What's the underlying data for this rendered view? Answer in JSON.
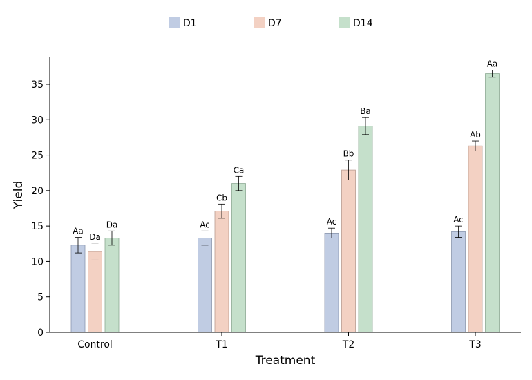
{
  "chart_data": {
    "type": "bar",
    "title": "",
    "xlabel": "Treatment",
    "ylabel": "Yield",
    "categories": [
      "Control",
      "T1",
      "T2",
      "T3"
    ],
    "ylim": [
      0,
      38.8
    ],
    "yticks": [
      0,
      5,
      10,
      15,
      20,
      25,
      30,
      35
    ],
    "legend_position": "top-center",
    "grid": false,
    "series": [
      {
        "name": "D1",
        "color": "#c0cce3",
        "edge_color": "#8a96ad",
        "values": [
          12.3,
          13.3,
          14.0,
          14.2
        ],
        "errors": [
          1.1,
          1.0,
          0.7,
          0.8
        ],
        "labels": [
          "Aa",
          "Ac",
          "Ac",
          "Ac"
        ]
      },
      {
        "name": "D7",
        "color": "#f3d1c3",
        "edge_color": "#b89b8f",
        "values": [
          11.4,
          17.1,
          22.9,
          26.3
        ],
        "errors": [
          1.2,
          1.0,
          1.4,
          0.7
        ],
        "labels": [
          "Da",
          "Cb",
          "Bb",
          "Ab"
        ]
      },
      {
        "name": "D14",
        "color": "#c5e0cb",
        "edge_color": "#8aa891",
        "values": [
          13.3,
          21.0,
          29.1,
          36.5
        ],
        "errors": [
          1.0,
          1.0,
          1.2,
          0.5
        ],
        "labels": [
          "Da",
          "Ca",
          "Ba",
          "Aa"
        ]
      }
    ]
  }
}
